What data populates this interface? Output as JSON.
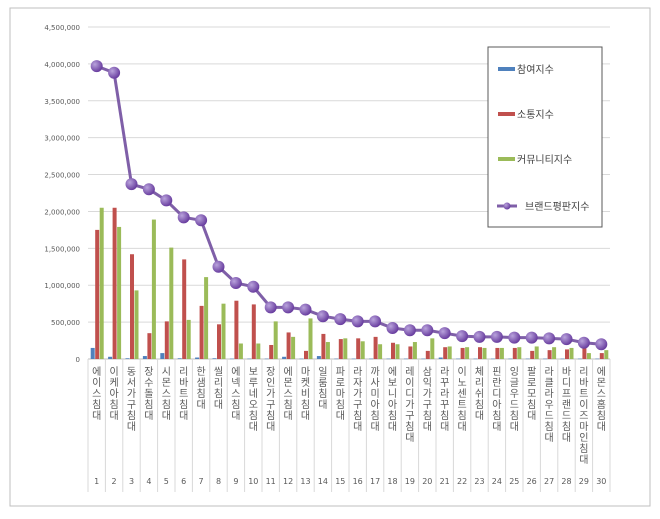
{
  "chart_data": {
    "type": "bar",
    "title": "",
    "xlabel": "",
    "ylabel": "",
    "ylim": [
      0,
      4500000
    ],
    "yticks": [
      "0",
      "500,000",
      "1,000,000",
      "1,500,000",
      "2,000,000",
      "2,500,000",
      "3,000,000",
      "3,500,000",
      "4,000,000",
      "4,500,000"
    ],
    "grid": true,
    "legend_position": "top-right",
    "categories": [
      "에이스 침대",
      "이케아 침대",
      "동서가구 침대",
      "장수돌침대",
      "시몬스 침대",
      "리바트 침대",
      "한샘 침대",
      "씰리 침대",
      "에넥스 침대",
      "보루네오 침대",
      "장인가구 침대",
      "에몬스 침대",
      "마켓비 침대",
      "일룸 침대",
      "파로마 침대",
      "라자가구 침대",
      "까사미아 침대",
      "에보니아 침대",
      "레이디가구 침대",
      "삼익가구 침대",
      "라꾸라꾸 침대",
      "이노센트 침대",
      "체리쉬 침대",
      "핀란디아 침대",
      "잉글우드 침대",
      "팔로모 침대",
      "라클라우드 침대",
      "바디프랜드 침대",
      "리바트이즈마인 침대",
      "에몬스홈 침대"
    ],
    "ranks": [
      "1",
      "2",
      "3",
      "4",
      "5",
      "6",
      "7",
      "8",
      "9",
      "10",
      "11",
      "12",
      "13",
      "14",
      "15",
      "16",
      "17",
      "18",
      "19",
      "20",
      "21",
      "22",
      "23",
      "24",
      "25",
      "26",
      "27",
      "28",
      "29",
      "30"
    ],
    "series": [
      {
        "name": "참여지수",
        "kind": "bar",
        "color": "#4f81bd",
        "values": [
          150000,
          30000,
          10000,
          40000,
          80000,
          10000,
          20000,
          10000,
          5000,
          5000,
          5000,
          30000,
          5000,
          40000,
          5000,
          5000,
          5000,
          5000,
          5000,
          5000,
          20000,
          5000,
          5000,
          5000,
          5000,
          5000,
          5000,
          5000,
          5000,
          5000
        ]
      },
      {
        "name": "소통지수",
        "kind": "bar",
        "color": "#c0504d",
        "values": [
          1750000,
          2050000,
          1420000,
          350000,
          510000,
          1350000,
          720000,
          470000,
          790000,
          740000,
          190000,
          360000,
          110000,
          340000,
          270000,
          280000,
          300000,
          220000,
          170000,
          110000,
          160000,
          150000,
          160000,
          150000,
          150000,
          110000,
          120000,
          130000,
          150000,
          80000
        ]
      },
      {
        "name": "커뮤니티지수",
        "kind": "bar",
        "color": "#9bbb59",
        "values": [
          2050000,
          1790000,
          930000,
          1890000,
          1510000,
          530000,
          1110000,
          750000,
          210000,
          210000,
          510000,
          300000,
          550000,
          230000,
          280000,
          240000,
          200000,
          200000,
          230000,
          280000,
          170000,
          160000,
          150000,
          150000,
          160000,
          170000,
          160000,
          150000,
          80000,
          120000
        ]
      },
      {
        "name": "브랜드평판지수",
        "kind": "line",
        "color": "#7030a0",
        "values": [
          3970000,
          3880000,
          2370000,
          2300000,
          2150000,
          1920000,
          1880000,
          1250000,
          1030000,
          980000,
          700000,
          700000,
          670000,
          580000,
          540000,
          510000,
          510000,
          420000,
          390000,
          390000,
          350000,
          310000,
          300000,
          300000,
          290000,
          290000,
          280000,
          270000,
          220000,
          200000
        ]
      }
    ]
  }
}
